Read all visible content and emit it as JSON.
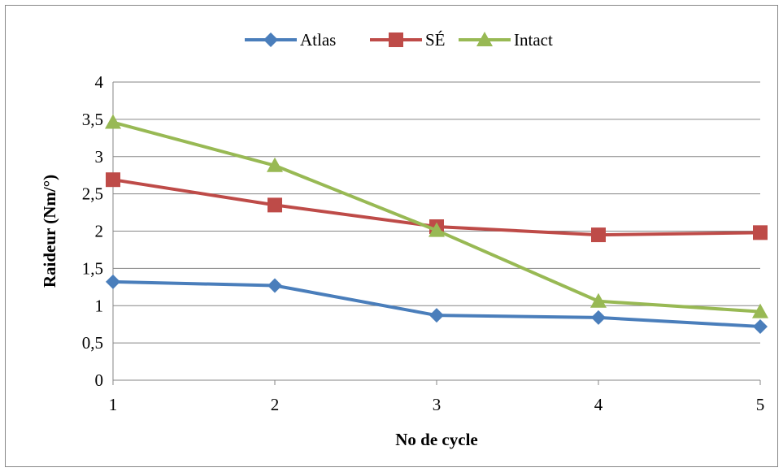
{
  "chart_data": {
    "type": "line",
    "title": "",
    "xlabel": "No de cycle",
    "ylabel": "Raideur (Nm/°)",
    "x": [
      1,
      2,
      3,
      4,
      5
    ],
    "x_tick_labels": [
      "1",
      "2",
      "3",
      "4",
      "5"
    ],
    "ylim": [
      0,
      4
    ],
    "y_ticks": [
      0,
      0.5,
      1,
      1.5,
      2,
      2.5,
      3,
      3.5,
      4
    ],
    "y_tick_labels": [
      "0",
      "0,5",
      "1",
      "1,5",
      "2",
      "2,5",
      "3",
      "3,5",
      "4"
    ],
    "grid": "horizontal",
    "legend_position": "top",
    "series": [
      {
        "name": "Atlas",
        "color": "#4a7ebb",
        "marker": "diamond",
        "values": [
          1.32,
          1.27,
          0.87,
          0.84,
          0.72
        ]
      },
      {
        "name": "SÉ",
        "color": "#be4b48",
        "marker": "square",
        "values": [
          2.69,
          2.35,
          2.06,
          1.95,
          1.98
        ]
      },
      {
        "name": "Intact",
        "color": "#98b954",
        "marker": "triangle",
        "values": [
          3.46,
          2.88,
          2.01,
          1.06,
          0.92
        ]
      }
    ]
  }
}
